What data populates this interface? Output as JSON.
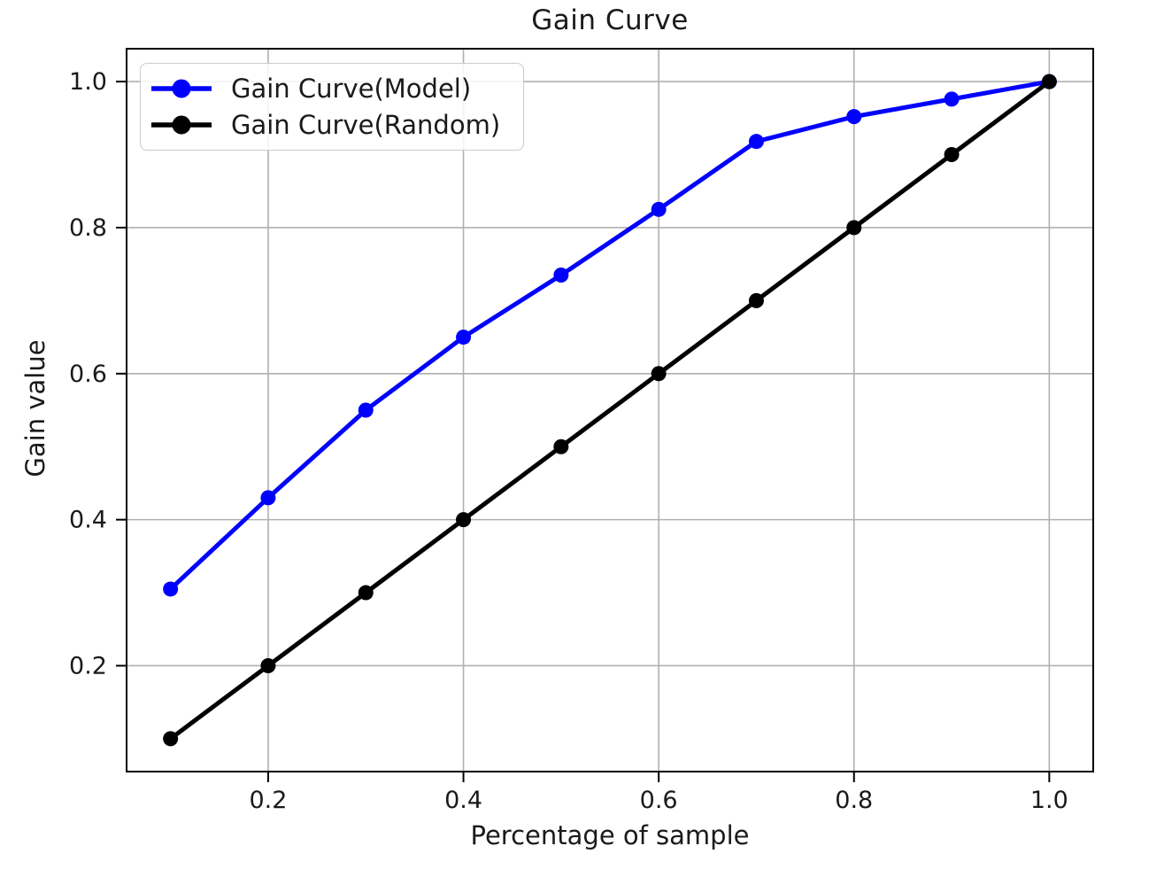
{
  "chart_data": {
    "type": "line",
    "title": "Gain Curve",
    "xlabel": "Percentage of sample",
    "ylabel": "Gain value",
    "x": [
      0.1,
      0.2,
      0.3,
      0.4,
      0.5,
      0.6,
      0.7,
      0.8,
      0.9,
      1.0
    ],
    "series": [
      {
        "key": "model",
        "name": "Gain Curve(Model)",
        "color": "#0000ff",
        "values": [
          0.305,
          0.43,
          0.55,
          0.65,
          0.735,
          0.825,
          0.918,
          0.952,
          0.976,
          1.0
        ]
      },
      {
        "key": "random",
        "name": "Gain Curve(Random)",
        "color": "#000000",
        "values": [
          0.1,
          0.2,
          0.3,
          0.4,
          0.5,
          0.6,
          0.7,
          0.8,
          0.9,
          1.0
        ]
      }
    ],
    "x_ticks": [
      0.2,
      0.4,
      0.6,
      0.8,
      1.0
    ],
    "x_tick_labels": [
      "0.2",
      "0.4",
      "0.6",
      "0.8",
      "1.0"
    ],
    "y_ticks": [
      0.2,
      0.4,
      0.6,
      0.8,
      1.0
    ],
    "y_tick_labels": [
      "0.2",
      "0.4",
      "0.6",
      "0.8",
      "1.0"
    ],
    "xlim": [
      0.055,
      1.045
    ],
    "ylim": [
      0.055,
      1.045
    ],
    "grid": true,
    "legend_position": "upper left",
    "grid_color": "#b0b0b0",
    "axis_color": "#000000",
    "text_color": "#1a1a1a"
  }
}
